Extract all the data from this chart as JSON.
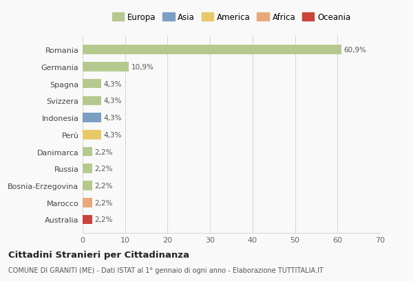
{
  "countries": [
    "Romania",
    "Germania",
    "Spagna",
    "Svizzera",
    "Indonesia",
    "Perù",
    "Danimarca",
    "Russia",
    "Bosnia-Erzegovina",
    "Marocco",
    "Australia"
  ],
  "values": [
    60.9,
    10.9,
    4.3,
    4.3,
    4.3,
    4.3,
    2.2,
    2.2,
    2.2,
    2.2,
    2.2
  ],
  "labels": [
    "60,9%",
    "10,9%",
    "4,3%",
    "4,3%",
    "4,3%",
    "4,3%",
    "2,2%",
    "2,2%",
    "2,2%",
    "2,2%",
    "2,2%"
  ],
  "colors": [
    "#b5c98e",
    "#b5c98e",
    "#b5c98e",
    "#b5c98e",
    "#7a9fc2",
    "#e8c96a",
    "#b5c98e",
    "#b5c98e",
    "#b5c98e",
    "#e8a87c",
    "#c9433a"
  ],
  "legend_labels": [
    "Europa",
    "Asia",
    "America",
    "Africa",
    "Oceania"
  ],
  "legend_colors": [
    "#b5c98e",
    "#7a9fc2",
    "#e8c96a",
    "#e8a87c",
    "#c9433a"
  ],
  "title": "Cittadini Stranieri per Cittadinanza",
  "subtitle": "COMUNE DI GRANITI (ME) - Dati ISTAT al 1° gennaio di ogni anno - Elaborazione TUTTITALIA.IT",
  "xlim": [
    0,
    70
  ],
  "xticks": [
    0,
    10,
    20,
    30,
    40,
    50,
    60,
    70
  ],
  "background_color": "#f9f9f9",
  "grid_color": "#d8d8d8",
  "bar_height": 0.55
}
